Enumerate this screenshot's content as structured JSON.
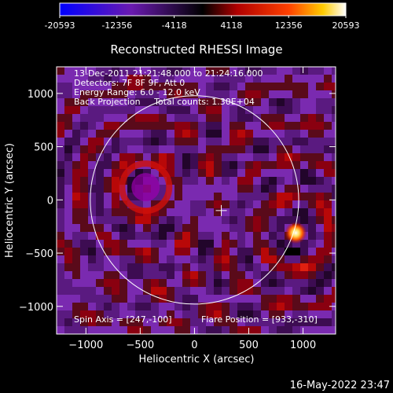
{
  "chart_data": {
    "type": "heatmap",
    "title": "Reconstructed RHESSI Image",
    "xlabel": "Heliocentric X (arcsec)",
    "ylabel": "Heliocentric Y (arcsec)",
    "xlim": [
      -1270,
      1300
    ],
    "ylim": [
      -1260,
      1250
    ],
    "xticks": [
      -1000,
      -500,
      0,
      500,
      1000
    ],
    "yticks": [
      -1000,
      -500,
      0,
      500,
      1000
    ],
    "colorbar": {
      "range": [
        -20593,
        20593
      ],
      "ticks": [
        "-20593",
        "-12356",
        "-4118",
        "4118",
        "12356",
        "20593"
      ],
      "tick_values": [
        -20593,
        -12356,
        -4118,
        4118,
        12356,
        20593
      ]
    },
    "annotations": [
      "13-Dec-2011 21:21:48.000 to 21:24:16.000",
      "Detectors: 7F 8F 9F, Att 0",
      "Energy Range: 6.0 - 12.0 keV",
      "Back Projection     Total counts: 1.30E+04"
    ],
    "spin_axis_label": "Spin Axis = [247,-100]",
    "flare_position_label": "Flare Position = [933,-310]",
    "solar_limb": {
      "center": [
        0,
        0
      ],
      "radius_arcsec": 960
    },
    "map_center_marker": [
      247,
      -100
    ],
    "sources": [
      {
        "x": 933,
        "y": -310,
        "kind": "bright"
      },
      {
        "x": -450,
        "y": 120,
        "kind": "dark"
      }
    ]
  },
  "footer": {
    "timestamp": "16-May-2022 23:47"
  }
}
